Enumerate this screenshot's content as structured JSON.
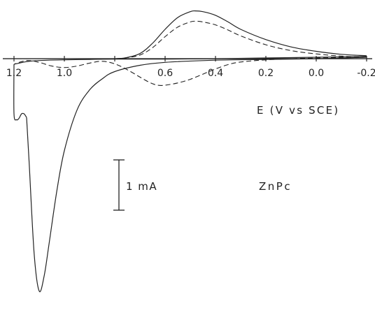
{
  "chart_data": {
    "type": "line",
    "title": "",
    "xlabel": "E (V vs SCE)",
    "ylabel": "",
    "x_reversed": true,
    "xlim": [
      -0.2,
      1.2
    ],
    "ylim": [
      -6.4,
      1.35
    ],
    "x_ticks": [
      1.2,
      1.0,
      0.8,
      0.6,
      0.4,
      0.2,
      0.0,
      -0.2
    ],
    "x_tick_labels": [
      "1.2",
      "1.0",
      "",
      "0.6",
      "0.4",
      "0.2",
      "0.0",
      "-0.2"
    ],
    "scale_bar": {
      "label": "1 mA",
      "value": 1.0
    },
    "annotation": "ZnPc",
    "colors": {
      "ink": "#222222",
      "background": "#ffffff"
    },
    "series": [
      {
        "style": "solid",
        "x": [
          -0.2,
          -0.1,
          0.0,
          0.1,
          0.2,
          0.3,
          0.35,
          0.4,
          0.45,
          0.48,
          0.5,
          0.55,
          0.6,
          0.65,
          0.7,
          0.76,
          0.8
        ],
        "y": [
          0.08,
          0.12,
          0.2,
          0.32,
          0.52,
          0.8,
          1.0,
          1.18,
          1.28,
          1.3,
          1.28,
          1.12,
          0.8,
          0.42,
          0.14,
          0.02,
          0.0
        ]
      },
      {
        "style": "solid",
        "x": [
          -0.2,
          0.0,
          0.2,
          0.4,
          0.6,
          0.7,
          0.8,
          0.85,
          0.9,
          0.95,
          1.0,
          1.03,
          1.06,
          1.08,
          1.1,
          1.12,
          1.14,
          1.15
        ],
        "y": [
          0.04,
          0.0,
          -0.02,
          -0.04,
          -0.1,
          -0.18,
          -0.35,
          -0.55,
          -0.85,
          -1.4,
          -2.5,
          -3.6,
          -5.0,
          -5.9,
          -6.32,
          -5.3,
          -2.8,
          -1.6
        ]
      },
      {
        "style": "solid",
        "x": [
          1.15,
          1.16,
          1.17,
          1.18,
          1.19,
          1.2,
          1.2
        ],
        "y": [
          -1.6,
          -1.5,
          -1.5,
          -1.62,
          -1.66,
          -1.5,
          -0.15
        ]
      },
      {
        "style": "solid",
        "x": [
          1.2,
          1.15,
          1.1,
          1.0,
          0.9,
          0.8,
          0.6,
          0.4,
          0.2,
          0.0,
          -0.2
        ],
        "y": [
          -0.15,
          -0.08,
          -0.05,
          -0.03,
          -0.02,
          -0.01,
          -0.01,
          0.0,
          0.02,
          0.04,
          0.06
        ]
      },
      {
        "style": "dashed",
        "x": [
          -0.2,
          -0.1,
          0.0,
          0.1,
          0.2,
          0.3,
          0.35,
          0.4,
          0.45,
          0.48,
          0.5,
          0.55,
          0.6,
          0.65,
          0.7,
          0.76,
          0.8
        ],
        "y": [
          0.04,
          0.07,
          0.13,
          0.22,
          0.38,
          0.62,
          0.78,
          0.92,
          1.0,
          1.02,
          1.0,
          0.86,
          0.6,
          0.3,
          0.1,
          0.02,
          0.0
        ]
      },
      {
        "style": "dashed",
        "x": [
          -0.2,
          0.0,
          0.1,
          0.2,
          0.3,
          0.35,
          0.4,
          0.45,
          0.5,
          0.55,
          0.6,
          0.63,
          0.66,
          0.7,
          0.75,
          0.8,
          0.85,
          0.9,
          0.95,
          1.0,
          1.05,
          1.1,
          1.15,
          1.2
        ],
        "y": [
          0.04,
          0.02,
          0.0,
          -0.03,
          -0.09,
          -0.16,
          -0.28,
          -0.42,
          -0.56,
          -0.66,
          -0.72,
          -0.72,
          -0.65,
          -0.5,
          -0.3,
          -0.14,
          -0.07,
          -0.12,
          -0.2,
          -0.24,
          -0.2,
          -0.1,
          -0.05,
          -0.15
        ]
      }
    ]
  }
}
